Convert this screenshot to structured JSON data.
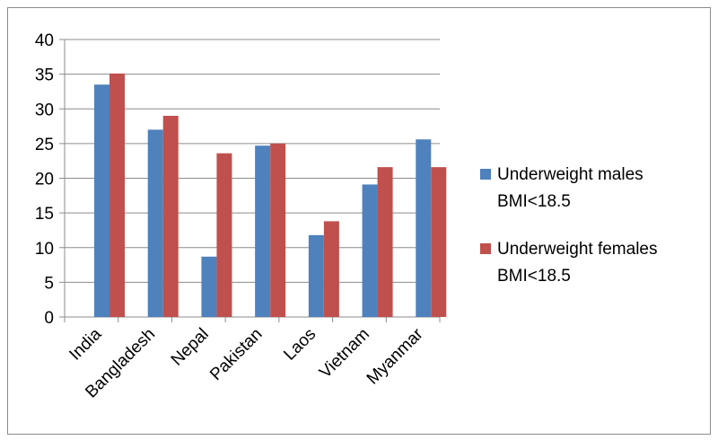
{
  "chart_data": {
    "type": "bar",
    "categories": [
      "India",
      "Bangladesh",
      "Nepal",
      "Pakistan",
      "Laos",
      "Vietnam",
      "Myanmar"
    ],
    "series": [
      {
        "name": "Underweight males BMI<18.5",
        "legend_lines": [
          "Underweight males",
          "BMI<18.5"
        ],
        "color": "#4F81BD",
        "values": [
          33.5,
          27.0,
          8.7,
          24.7,
          11.8,
          19.1,
          25.6
        ]
      },
      {
        "name": "Underweight females BMI<18.5",
        "legend_lines": [
          "Underweight females",
          "BMI<18.5"
        ],
        "color": "#C0504D",
        "values": [
          35.1,
          29.0,
          23.6,
          25.0,
          13.8,
          21.6,
          21.6
        ]
      }
    ],
    "yticks": [
      "0",
      "5",
      "10",
      "15",
      "20",
      "25",
      "30",
      "35",
      "40"
    ],
    "ylim": [
      0,
      40
    ],
    "grid": true,
    "legend_position": "right"
  }
}
